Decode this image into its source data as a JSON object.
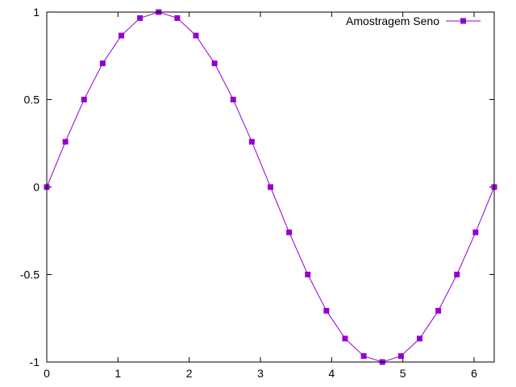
{
  "chart_data": {
    "type": "line",
    "title": "",
    "xlabel": "",
    "ylabel": "",
    "xlim": [
      0,
      6.283185
    ],
    "ylim": [
      -1,
      1
    ],
    "xticks": [
      0,
      1,
      2,
      3,
      4,
      5,
      6
    ],
    "xtick_labels": [
      "0",
      "1",
      "2",
      "3",
      "4",
      "5",
      "6"
    ],
    "yticks": [
      -1,
      -0.5,
      0,
      0.5,
      1
    ],
    "ytick_labels": [
      "-1",
      "-0.5",
      "0",
      "0.5",
      "1"
    ],
    "grid": false,
    "legend_position": "top-right",
    "series": [
      {
        "name": "Amostragem Seno",
        "color": "#9400d3",
        "marker": "square",
        "x": [
          0,
          0.2618,
          0.5236,
          0.7854,
          1.0472,
          1.309,
          1.5708,
          1.8326,
          2.0944,
          2.3562,
          2.618,
          2.8798,
          3.1416,
          3.4034,
          3.6652,
          3.927,
          4.1888,
          4.4506,
          4.7124,
          4.9742,
          5.236,
          5.4978,
          5.7596,
          6.0214,
          6.2832
        ],
        "y": [
          0,
          0.2588,
          0.5,
          0.7071,
          0.866,
          0.9659,
          1,
          0.9659,
          0.866,
          0.7071,
          0.5,
          0.2588,
          0,
          -0.2588,
          -0.5,
          -0.7071,
          -0.866,
          -0.9659,
          -1,
          -0.9659,
          -0.866,
          -0.7071,
          -0.5,
          -0.2588,
          0
        ]
      }
    ]
  }
}
